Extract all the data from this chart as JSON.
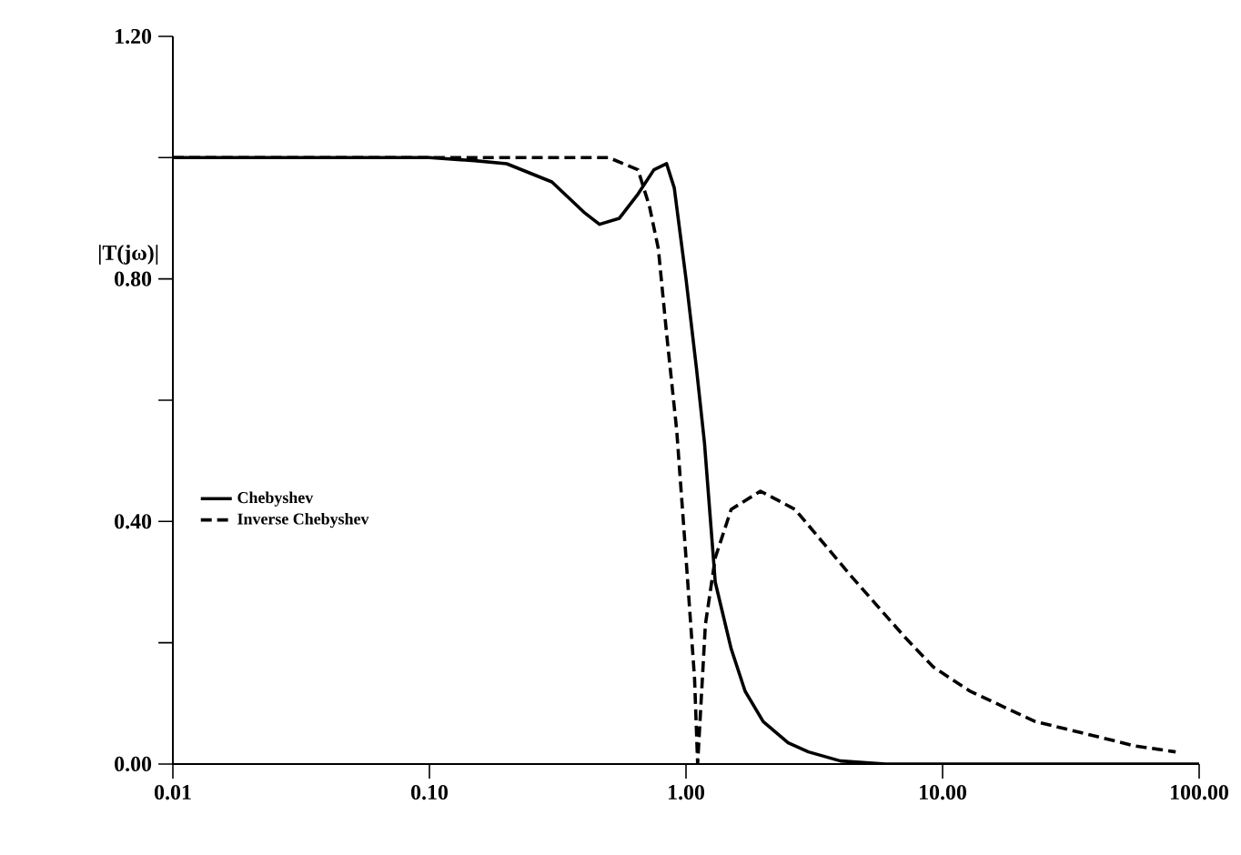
{
  "chart_data": {
    "type": "line",
    "ylabel": "|T(jω)|",
    "log": "x",
    "xlim": [
      0.01,
      100
    ],
    "ylim": [
      0,
      1.2
    ],
    "xticks": [
      {
        "value": 0.01,
        "label": "0.01"
      },
      {
        "value": 0.1,
        "label": "0.10"
      },
      {
        "value": 1,
        "label": "1.00"
      },
      {
        "value": 10,
        "label": "10.00"
      },
      {
        "value": 100,
        "label": "100.00"
      }
    ],
    "yticks": [
      {
        "value": 0,
        "label": "0.00"
      },
      {
        "value": 0.2,
        "label": null
      },
      {
        "value": 0.4,
        "label": "0.40"
      },
      {
        "value": 0.6,
        "label": null
      },
      {
        "value": 0.8,
        "label": "0.80"
      },
      {
        "value": 1.0,
        "label": null
      },
      {
        "value": 1.2,
        "label": "1.20"
      }
    ],
    "grid": false,
    "legend": "left",
    "marker": "none",
    "series": [
      {
        "name": "Chebyshev",
        "color": "#000000",
        "line_style": "solid",
        "x": [
          0.01,
          0.05,
          0.1,
          0.15,
          0.2,
          0.3,
          0.4,
          0.46,
          0.55,
          0.65,
          0.75,
          0.84,
          0.9,
          1.0,
          1.1,
          1.18,
          1.3,
          1.5,
          1.7,
          2.0,
          2.5,
          3.0,
          4.0,
          6.0,
          10,
          30,
          100
        ],
        "values": [
          1.0,
          1.0,
          1.0,
          0.995,
          0.99,
          0.96,
          0.91,
          0.89,
          0.9,
          0.94,
          0.98,
          0.99,
          0.95,
          0.8,
          0.65,
          0.53,
          0.3,
          0.19,
          0.12,
          0.07,
          0.035,
          0.02,
          0.005,
          0,
          0,
          0,
          0
        ]
      },
      {
        "name": "Inverse Chebyshev",
        "color": "#000000",
        "line_style": "dashed",
        "x": [
          0.01,
          0.1,
          0.3,
          0.5,
          0.65,
          0.72,
          0.78,
          0.84,
          0.92,
          1.0,
          1.08,
          1.11,
          1.19,
          1.3,
          1.5,
          1.95,
          2.66,
          3.5,
          4.4,
          7.1,
          9.2,
          12.8,
          23,
          36,
          56,
          81
        ],
        "values": [
          1.0,
          1.0,
          1.0,
          1.0,
          0.98,
          0.92,
          0.85,
          0.71,
          0.55,
          0.34,
          0.14,
          0.0,
          0.23,
          0.34,
          0.42,
          0.45,
          0.42,
          0.36,
          0.31,
          0.21,
          0.16,
          0.12,
          0.07,
          0.05,
          0.03,
          0.02
        ]
      }
    ]
  }
}
